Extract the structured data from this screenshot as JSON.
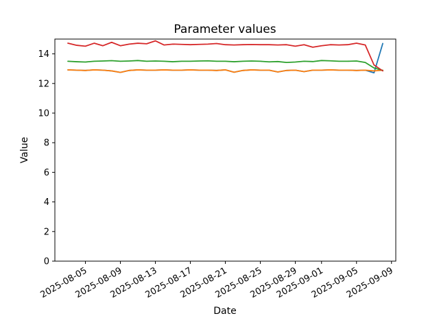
{
  "chart_data": {
    "type": "line",
    "title": "Parameter values",
    "xlabel": "Date",
    "ylabel": "Value",
    "grid": false,
    "legend_position": "none",
    "ylim": [
      0,
      15
    ],
    "yticks": [
      0,
      2,
      4,
      6,
      8,
      10,
      12,
      14
    ],
    "xticks": [
      {
        "label": "2025-08-05",
        "day": 2
      },
      {
        "label": "2025-08-09",
        "day": 6
      },
      {
        "label": "2025-08-13",
        "day": 10
      },
      {
        "label": "2025-08-17",
        "day": 14
      },
      {
        "label": "2025-08-21",
        "day": 18
      },
      {
        "label": "2025-08-25",
        "day": 22
      },
      {
        "label": "2025-08-29",
        "day": 26
      },
      {
        "label": "2025-09-01",
        "day": 29
      },
      {
        "label": "2025-09-05",
        "day": 33
      },
      {
        "label": "2025-09-09",
        "day": 37
      }
    ],
    "x": [
      "2025-08-03",
      "2025-08-04",
      "2025-08-05",
      "2025-08-06",
      "2025-08-07",
      "2025-08-08",
      "2025-08-09",
      "2025-08-10",
      "2025-08-11",
      "2025-08-12",
      "2025-08-13",
      "2025-08-14",
      "2025-08-15",
      "2025-08-16",
      "2025-08-17",
      "2025-08-18",
      "2025-08-19",
      "2025-08-20",
      "2025-08-21",
      "2025-08-22",
      "2025-08-23",
      "2025-08-24",
      "2025-08-25",
      "2025-08-26",
      "2025-08-27",
      "2025-08-28",
      "2025-08-29",
      "2025-08-30",
      "2025-08-31",
      "2025-09-01",
      "2025-09-02",
      "2025-09-03",
      "2025-09-04",
      "2025-09-05",
      "2025-09-06",
      "2025-09-07",
      "2025-09-08"
    ],
    "series": [
      {
        "name": "series-blue",
        "color": "#1f77b4",
        "values": [
          12.92,
          12.9,
          12.88,
          12.92,
          12.9,
          12.85,
          12.75,
          12.88,
          12.92,
          12.9,
          12.9,
          12.92,
          12.9,
          12.9,
          12.92,
          12.9,
          12.9,
          12.88,
          12.92,
          12.76,
          12.88,
          12.92,
          12.9,
          12.9,
          12.78,
          12.88,
          12.9,
          12.8,
          12.9,
          12.9,
          12.92,
          12.9,
          12.9,
          12.88,
          12.9,
          12.72,
          14.7
        ]
      },
      {
        "name": "series-orange",
        "color": "#ff7f0e",
        "values": [
          12.92,
          12.9,
          12.88,
          12.92,
          12.9,
          12.85,
          12.75,
          12.88,
          12.92,
          12.9,
          12.9,
          12.92,
          12.9,
          12.9,
          12.92,
          12.9,
          12.9,
          12.88,
          12.92,
          12.76,
          12.88,
          12.92,
          12.9,
          12.9,
          12.78,
          12.88,
          12.9,
          12.8,
          12.9,
          12.9,
          12.92,
          12.9,
          12.9,
          12.88,
          12.9,
          12.85,
          12.9
        ]
      },
      {
        "name": "series-green",
        "color": "#2ca02c",
        "values": [
          13.5,
          13.47,
          13.45,
          13.5,
          13.52,
          13.54,
          13.5,
          13.52,
          13.55,
          13.5,
          13.52,
          13.5,
          13.47,
          13.5,
          13.5,
          13.52,
          13.53,
          13.5,
          13.5,
          13.47,
          13.5,
          13.52,
          13.5,
          13.46,
          13.48,
          13.42,
          13.45,
          13.5,
          13.48,
          13.55,
          13.53,
          13.5,
          13.5,
          13.52,
          13.42,
          13.05,
          12.88
        ]
      },
      {
        "name": "series-red",
        "color": "#d62728",
        "values": [
          14.72,
          14.58,
          14.52,
          14.72,
          14.55,
          14.78,
          14.55,
          14.66,
          14.72,
          14.68,
          14.88,
          14.6,
          14.66,
          14.64,
          14.62,
          14.64,
          14.66,
          14.7,
          14.62,
          14.6,
          14.62,
          14.63,
          14.62,
          14.62,
          14.6,
          14.62,
          14.52,
          14.62,
          14.45,
          14.55,
          14.62,
          14.6,
          14.62,
          14.72,
          14.6,
          13.25,
          12.85
        ]
      }
    ]
  }
}
